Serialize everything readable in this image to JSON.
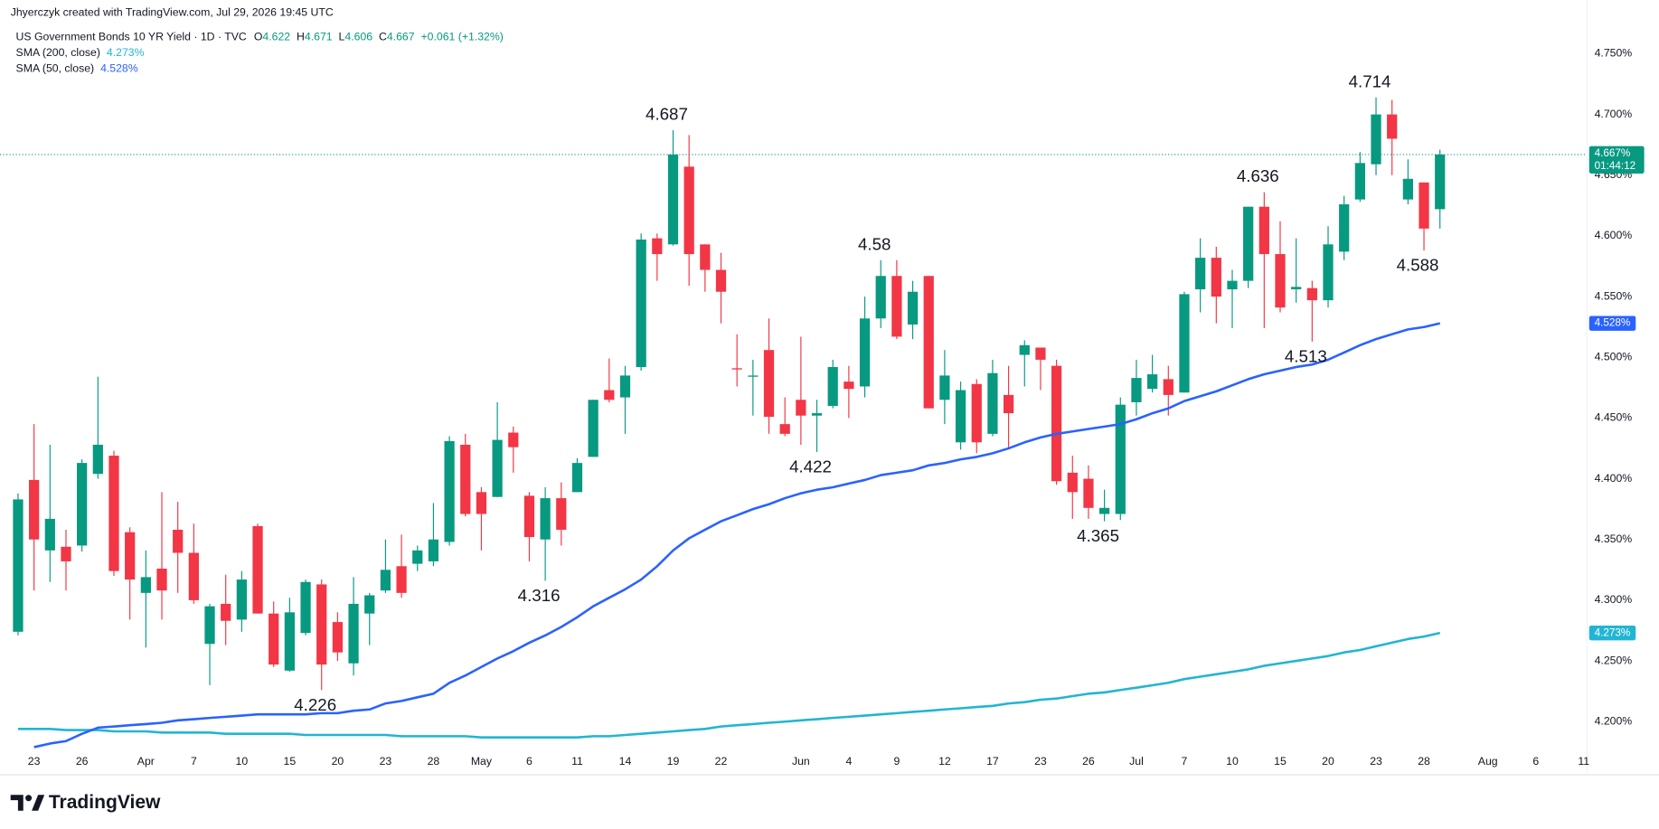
{
  "chart_data": {
    "type": "candlestick",
    "attribution": "Jhyerczyk created with TradingView.com, Jul 29, 2026 19:45 UTC",
    "symbol": "US Government Bonds 10 YR Yield · 1D · TVC",
    "ohlc_keys": [
      "O",
      "H",
      "L",
      "C"
    ],
    "change": "+0.061 (+1.32%)",
    "logo": "TradingView",
    "up_color": "#089981",
    "down_color": "#f23645",
    "categories": [
      null,
      "23",
      null,
      null,
      "26",
      null,
      null,
      null,
      "Apr",
      null,
      null,
      "7",
      null,
      null,
      "10",
      null,
      null,
      "15",
      null,
      null,
      "20",
      null,
      null,
      "23",
      null,
      null,
      "28",
      null,
      null,
      "May",
      null,
      null,
      "6",
      null,
      null,
      "11",
      null,
      null,
      "14",
      null,
      null,
      "19",
      null,
      null,
      "22",
      null,
      null,
      null,
      null,
      "Jun",
      null,
      null,
      "4",
      null,
      null,
      "9",
      null,
      null,
      "12",
      null,
      null,
      "17",
      null,
      null,
      "23",
      null,
      null,
      "26",
      null,
      null,
      "Jul",
      null,
      null,
      "7",
      null,
      null,
      "10",
      null,
      null,
      "15",
      null,
      null,
      "20",
      null,
      null,
      "23",
      null,
      null,
      "28",
      null,
      null,
      null,
      "Aug",
      null,
      null,
      "6",
      null,
      null,
      "11"
    ],
    "open": [
      4.274,
      4.399,
      4.341,
      4.344,
      4.345,
      4.404,
      4.419,
      4.356,
      4.306,
      4.326,
      4.358,
      4.339,
      4.264,
      4.297,
      4.284,
      4.361,
      4.289,
      4.242,
      4.273,
      4.313,
      4.282,
      4.248,
      4.289,
      4.308,
      4.328,
      4.33,
      4.332,
      4.348,
      4.428,
      4.389,
      4.385,
      4.438,
      4.386,
      4.35,
      4.384,
      4.389,
      4.418,
      4.473,
      4.467,
      4.492,
      4.598,
      4.593,
      4.657,
      4.593,
      4.572,
      4.491,
      4.484,
      4.506,
      4.445,
      4.465,
      4.452,
      4.46,
      4.48,
      4.476,
      4.532,
      4.567,
      4.527,
      4.567,
      4.465,
      4.43,
      4.478,
      4.437,
      4.469,
      4.502,
      4.508,
      4.493,
      4.405,
      4.4,
      4.371,
      4.371,
      4.463,
      4.474,
      4.482,
      4.471,
      4.556,
      4.582,
      4.556,
      4.563,
      4.624,
      4.585,
      4.556,
      4.557,
      4.547,
      4.587,
      4.63,
      4.659,
      4.7,
      4.63,
      4.644,
      4.622,
      null,
      null,
      null,
      null,
      null,
      null,
      null,
      null,
      null
    ],
    "high": [
      4.388,
      4.445,
      4.428,
      4.358,
      4.416,
      4.484,
      4.423,
      4.36,
      4.341,
      4.389,
      4.381,
      4.363,
      4.297,
      4.321,
      4.324,
      4.363,
      4.299,
      4.302,
      4.317,
      4.317,
      4.29,
      4.319,
      4.306,
      4.35,
      4.354,
      4.345,
      4.38,
      4.435,
      4.437,
      4.393,
      4.463,
      4.443,
      4.389,
      4.393,
      4.397,
      4.417,
      4.465,
      4.499,
      4.493,
      4.602,
      4.602,
      4.687,
      4.683,
      4.593,
      4.586,
      4.519,
      4.498,
      4.532,
      4.467,
      4.517,
      4.465,
      4.498,
      4.493,
      4.55,
      4.58,
      4.58,
      4.563,
      4.567,
      4.506,
      4.48,
      4.482,
      4.498,
      4.493,
      4.514,
      4.508,
      4.498,
      4.419,
      4.411,
      4.391,
      4.467,
      4.498,
      4.502,
      4.493,
      4.554,
      4.598,
      4.591,
      4.572,
      4.624,
      4.636,
      4.612,
      4.598,
      4.563,
      4.608,
      4.633,
      4.669,
      4.714,
      4.712,
      4.663,
      4.644,
      4.671,
      null,
      null,
      null,
      null,
      null,
      null,
      null,
      null,
      null
    ],
    "low": [
      4.271,
      4.308,
      4.315,
      4.308,
      4.34,
      4.4,
      4.32,
      4.284,
      4.261,
      4.284,
      4.306,
      4.297,
      4.23,
      4.263,
      4.274,
      4.289,
      4.245,
      4.241,
      4.271,
      4.226,
      4.25,
      4.238,
      4.263,
      4.306,
      4.302,
      4.324,
      4.328,
      4.345,
      4.369,
      4.341,
      4.385,
      4.405,
      4.332,
      4.316,
      4.345,
      4.389,
      4.418,
      4.463,
      4.437,
      4.489,
      4.563,
      4.592,
      4.559,
      4.554,
      4.528,
      4.476,
      4.452,
      4.437,
      4.435,
      4.428,
      4.422,
      4.458,
      4.45,
      4.467,
      4.524,
      4.515,
      4.515,
      4.458,
      4.445,
      4.424,
      4.421,
      4.435,
      4.426,
      4.476,
      4.473,
      4.395,
      4.367,
      4.367,
      4.365,
      4.366,
      4.452,
      4.471,
      4.452,
      4.471,
      4.537,
      4.528,
      4.524,
      4.557,
      4.524,
      4.537,
      4.545,
      4.513,
      4.541,
      4.58,
      4.628,
      4.65,
      4.65,
      4.626,
      4.588,
      4.606,
      null,
      null,
      null,
      null,
      null,
      null,
      null,
      null,
      null
    ],
    "close": [
      4.383,
      4.35,
      4.367,
      4.332,
      4.413,
      4.428,
      4.324,
      4.317,
      4.319,
      4.308,
      4.339,
      4.3,
      4.295,
      4.283,
      4.317,
      4.289,
      4.247,
      4.29,
      4.315,
      4.247,
      4.257,
      4.297,
      4.304,
      4.325,
      4.306,
      4.341,
      4.35,
      4.431,
      4.371,
      4.371,
      4.432,
      4.426,
      4.352,
      4.384,
      4.358,
      4.413,
      4.465,
      4.465,
      4.485,
      4.597,
      4.585,
      4.667,
      4.585,
      4.572,
      4.554,
      4.49,
      4.485,
      4.451,
      4.437,
      4.452,
      4.454,
      4.492,
      4.474,
      4.532,
      4.567,
      4.517,
      4.554,
      4.458,
      4.485,
      4.473,
      4.43,
      4.487,
      4.454,
      4.51,
      4.498,
      4.398,
      4.389,
      4.376,
      4.376,
      4.461,
      4.483,
      4.486,
      4.469,
      4.552,
      4.582,
      4.55,
      4.563,
      4.624,
      4.585,
      4.541,
      4.558,
      4.547,
      4.593,
      4.626,
      4.66,
      4.7,
      4.68,
      4.647,
      4.606,
      4.667,
      null,
      null,
      null,
      null,
      null,
      null,
      null,
      null,
      null
    ],
    "close_label": "4.667%",
    "countdown": "01:44:12",
    "series": [
      {
        "name": "SMA (200, close)",
        "color": "#22b5d3",
        "value_label": "4.273%",
        "values": [
          4.194,
          4.194,
          4.194,
          4.193,
          4.193,
          4.193,
          4.192,
          4.192,
          4.192,
          4.191,
          4.191,
          4.191,
          4.191,
          4.19,
          4.19,
          4.19,
          4.19,
          4.19,
          4.189,
          4.189,
          4.189,
          4.189,
          4.189,
          4.189,
          4.188,
          4.188,
          4.188,
          4.188,
          4.188,
          4.187,
          4.187,
          4.187,
          4.187,
          4.187,
          4.187,
          4.187,
          4.188,
          4.188,
          4.189,
          4.19,
          4.191,
          4.192,
          4.193,
          4.194,
          4.196,
          4.197,
          4.198,
          4.199,
          4.2,
          4.201,
          4.202,
          4.203,
          4.204,
          4.205,
          4.206,
          4.207,
          4.208,
          4.209,
          4.21,
          4.211,
          4.212,
          4.213,
          4.215,
          4.216,
          4.218,
          4.219,
          4.221,
          4.223,
          4.224,
          4.226,
          4.228,
          4.23,
          4.232,
          4.235,
          4.237,
          4.239,
          4.241,
          4.243,
          4.246,
          4.248,
          4.25,
          4.252,
          4.254,
          4.257,
          4.259,
          4.262,
          4.265,
          4.268,
          4.27,
          4.273,
          null,
          null,
          null,
          null,
          null,
          null,
          null,
          null,
          null
        ]
      },
      {
        "name": "SMA (50, close)",
        "color": "#2962ff",
        "value_label": "4.528%",
        "values": [
          null,
          4.179,
          4.182,
          4.184,
          4.19,
          4.195,
          4.196,
          4.197,
          4.198,
          4.199,
          4.201,
          4.202,
          4.203,
          4.204,
          4.205,
          4.206,
          4.206,
          4.206,
          4.206,
          4.207,
          4.207,
          4.209,
          4.21,
          4.215,
          4.217,
          4.22,
          4.223,
          4.232,
          4.238,
          4.245,
          4.252,
          4.258,
          4.265,
          4.271,
          4.278,
          4.286,
          4.295,
          4.302,
          4.309,
          4.317,
          4.328,
          4.341,
          4.351,
          4.358,
          4.365,
          4.37,
          4.375,
          4.379,
          4.384,
          4.388,
          4.391,
          4.393,
          4.396,
          4.399,
          4.403,
          4.405,
          4.407,
          4.411,
          4.413,
          4.416,
          4.418,
          4.421,
          4.425,
          4.43,
          4.434,
          4.437,
          4.439,
          4.441,
          4.443,
          4.445,
          4.449,
          4.454,
          4.458,
          4.464,
          4.468,
          4.472,
          4.477,
          4.482,
          4.486,
          4.489,
          4.492,
          4.494,
          4.498,
          4.504,
          4.51,
          4.515,
          4.519,
          4.523,
          4.525,
          4.528,
          null,
          null,
          null,
          null,
          null,
          null,
          null,
          null,
          null
        ]
      }
    ],
    "extremes": [
      4.226,
      4.316,
      4.687,
      4.422,
      4.58,
      4.365,
      4.636,
      4.513,
      4.714,
      4.588
    ],
    "ylim": [
      4.158,
      4.794
    ],
    "yticks": [
      {
        "value": 4.2,
        "label": "4.200%"
      },
      {
        "value": 4.25,
        "label": "4.250%"
      },
      {
        "value": 4.3,
        "label": "4.300%"
      },
      {
        "value": 4.35,
        "label": "4.350%"
      },
      {
        "value": 4.4,
        "label": "4.400%"
      },
      {
        "value": 4.45,
        "label": "4.450%"
      },
      {
        "value": 4.5,
        "label": "4.500%"
      },
      {
        "value": 4.55,
        "label": "4.550%"
      },
      {
        "value": 4.6,
        "label": "4.600%"
      },
      {
        "value": 4.65,
        "label": "4.650%"
      },
      {
        "value": 4.7,
        "label": "4.700%"
      },
      {
        "value": 4.75,
        "label": "4.750%"
      }
    ],
    "grid": false
  }
}
